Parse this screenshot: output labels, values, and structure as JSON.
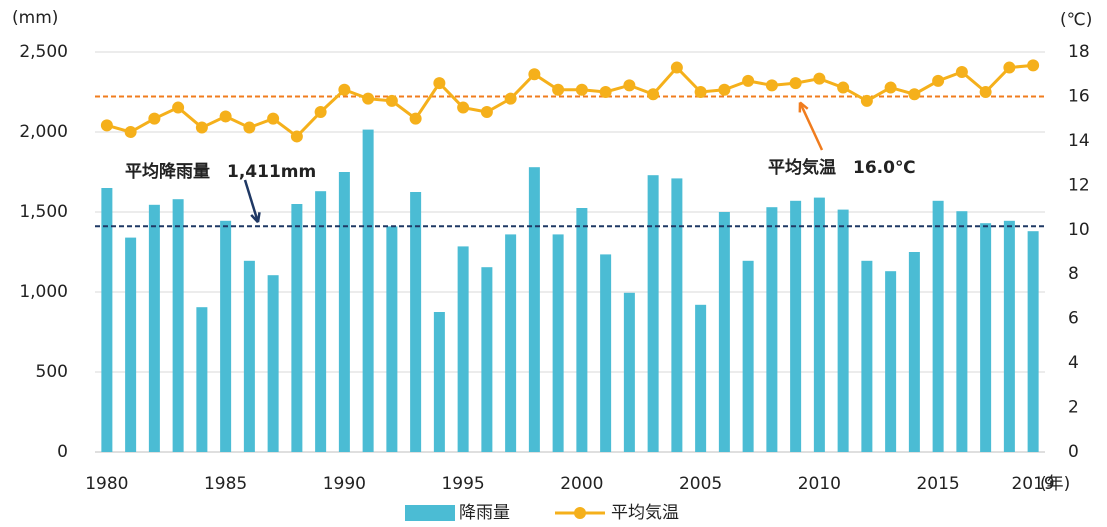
{
  "chart_data": {
    "type": "bar_line",
    "y_unit": "(mm)",
    "y2_unit": "(℃)",
    "x_unit": "(年)",
    "categories": [
      "1980",
      null,
      null,
      null,
      null,
      "1985",
      null,
      null,
      null,
      null,
      "1990",
      null,
      null,
      null,
      null,
      "1995",
      null,
      null,
      null,
      null,
      "2000",
      null,
      null,
      null,
      null,
      "2005",
      null,
      null,
      null,
      null,
      "2010",
      null,
      null,
      null,
      null,
      "2015",
      null,
      null,
      null,
      "2019"
    ],
    "series": [
      {
        "name": "降雨量",
        "type": "bar",
        "color": "#4bbcd4",
        "axis": "y",
        "values": [
          1650,
          1340,
          1545,
          1580,
          905,
          1445,
          1195,
          1105,
          1550,
          1630,
          1750,
          2015,
          1410,
          1625,
          875,
          1285,
          1155,
          1360,
          1780,
          1360,
          1525,
          1235,
          995,
          1730,
          1710,
          920,
          1500,
          1195,
          1530,
          1570,
          1590,
          1515,
          1195,
          1130,
          1250,
          1570,
          1505,
          1430,
          1445,
          1380
        ]
      },
      {
        "name": "平均気温",
        "type": "line",
        "color": "#f5b01b",
        "axis": "y2",
        "values": [
          14.7,
          14.4,
          15.0,
          15.5,
          14.6,
          15.1,
          14.6,
          15.0,
          14.2,
          15.3,
          16.3,
          15.9,
          15.8,
          15.0,
          16.6,
          15.5,
          15.3,
          15.9,
          17.0,
          16.3,
          16.3,
          16.2,
          16.5,
          16.1,
          17.3,
          16.2,
          16.3,
          16.7,
          16.5,
          16.6,
          16.8,
          16.4,
          15.8,
          16.4,
          16.1,
          16.7,
          17.1,
          16.2,
          17.3,
          17.4
        ]
      }
    ],
    "annotations": [
      {
        "text": "平均降雨量　1,411mm",
        "value": 1411,
        "axis": "y",
        "color": "#1f3864"
      },
      {
        "text": "平均気温　16.0℃",
        "value": 16.0,
        "axis": "y2",
        "color": "#f07c1e"
      }
    ],
    "ylim": [
      0,
      2500
    ],
    "yticks": [
      0,
      500,
      {
        "value": 1000,
        "label": "1,000"
      },
      {
        "value": 1500,
        "label": "1,500"
      },
      {
        "value": 2000,
        "label": "2,000"
      },
      {
        "value": 2500,
        "label": "2,500"
      }
    ],
    "y2lim": [
      0,
      18
    ],
    "y2ticks": [
      0,
      2,
      4,
      6,
      8,
      10,
      12,
      14,
      16,
      18
    ],
    "grid": true,
    "legend": "bottom"
  }
}
